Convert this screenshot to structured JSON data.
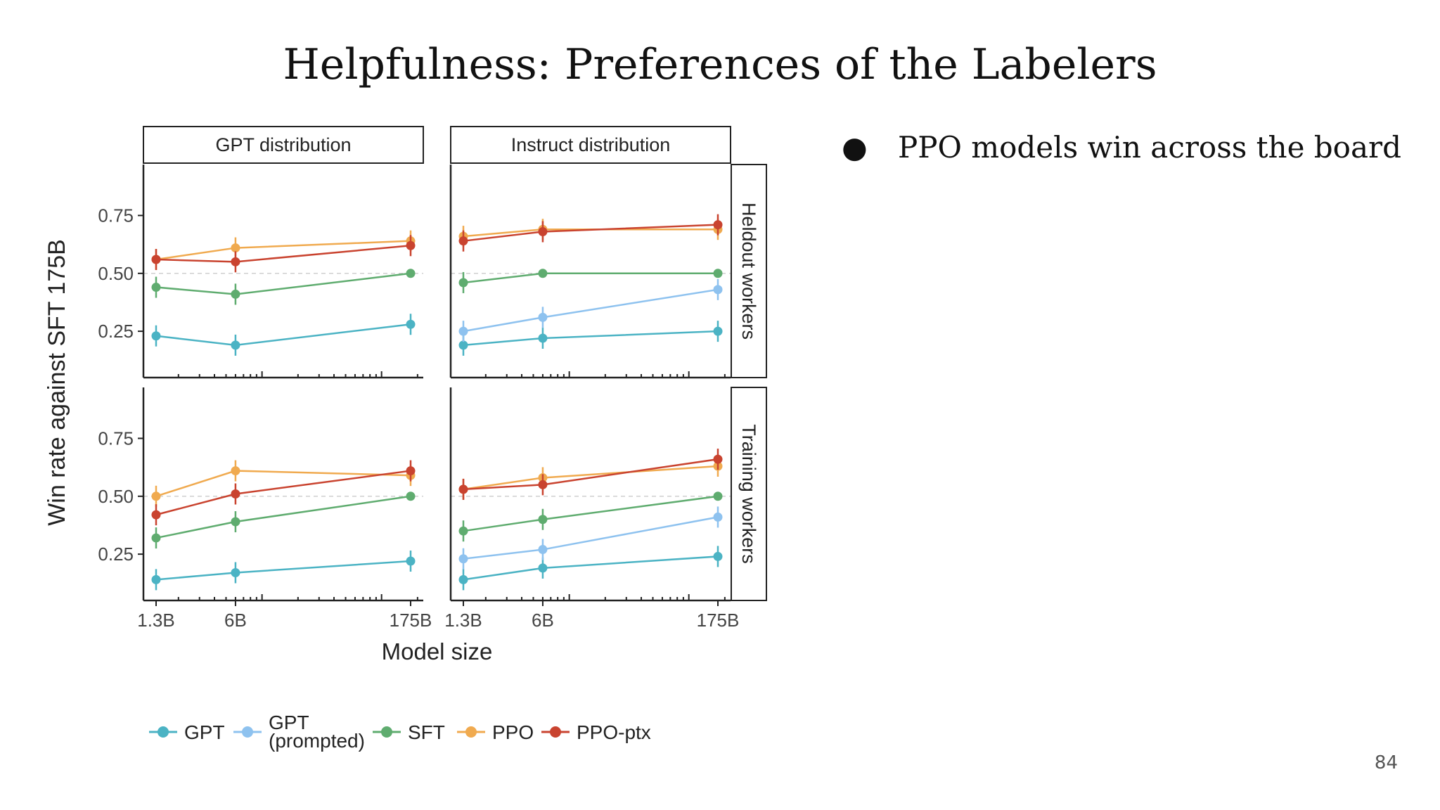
{
  "slide": {
    "title": "Helpfulness: Preferences of the Labelers",
    "bullets": [
      "PPO models win across the board"
    ],
    "page_number": "84"
  },
  "chart_data": {
    "type": "line",
    "ylabel": "Win rate against SFT 175B",
    "xlabel": "Model size",
    "x_scale": "log",
    "ylim": [
      0.05,
      0.97
    ],
    "y_ticks": [
      "0.25",
      "0.50",
      "0.75"
    ],
    "x_ticks": [
      "1.3B",
      "6B",
      "175B"
    ],
    "reference_line": 0.5,
    "column_labels": [
      "GPT distribution",
      "Instruct distribution"
    ],
    "row_labels": [
      "Heldout workers",
      "Training workers"
    ],
    "colors": {
      "GPT": "#4bb3c4",
      "GPT (prompted)": "#8ec2ef",
      "SFT": "#5fac6f",
      "PPO": "#f0aa4f",
      "PPO-ptx": "#c9432f"
    },
    "legend": [
      {
        "key": "GPT",
        "label": "GPT"
      },
      {
        "key": "GPT (prompted)",
        "label_line1": "GPT",
        "label_line2": "(prompted)"
      },
      {
        "key": "SFT",
        "label": "SFT"
      },
      {
        "key": "PPO",
        "label": "PPO"
      },
      {
        "key": "PPO-ptx",
        "label": "PPO-ptx"
      }
    ],
    "panels": [
      {
        "column": "GPT distribution",
        "row": "Heldout workers",
        "series": [
          {
            "name": "GPT",
            "values": [
              0.23,
              0.19,
              0.28
            ]
          },
          {
            "name": "SFT",
            "values": [
              0.44,
              0.41,
              0.5
            ]
          },
          {
            "name": "PPO",
            "values": [
              0.56,
              0.61,
              0.64
            ]
          },
          {
            "name": "PPO-ptx",
            "values": [
              0.56,
              0.55,
              0.62
            ]
          }
        ]
      },
      {
        "column": "Instruct distribution",
        "row": "Heldout workers",
        "series": [
          {
            "name": "GPT",
            "values": [
              0.19,
              0.22,
              0.25
            ]
          },
          {
            "name": "GPT (prompted)",
            "values": [
              0.25,
              0.31,
              0.43
            ]
          },
          {
            "name": "SFT",
            "values": [
              0.46,
              0.5,
              0.5
            ]
          },
          {
            "name": "PPO",
            "values": [
              0.66,
              0.69,
              0.69
            ]
          },
          {
            "name": "PPO-ptx",
            "values": [
              0.64,
              0.68,
              0.71
            ]
          }
        ]
      },
      {
        "column": "GPT distribution",
        "row": "Training workers",
        "series": [
          {
            "name": "GPT",
            "values": [
              0.14,
              0.17,
              0.22
            ]
          },
          {
            "name": "SFT",
            "values": [
              0.32,
              0.39,
              0.5
            ]
          },
          {
            "name": "PPO",
            "values": [
              0.5,
              0.61,
              0.59
            ]
          },
          {
            "name": "PPO-ptx",
            "values": [
              0.42,
              0.51,
              0.61
            ]
          }
        ]
      },
      {
        "column": "Instruct distribution",
        "row": "Training workers",
        "series": [
          {
            "name": "GPT",
            "values": [
              0.14,
              0.19,
              0.24
            ]
          },
          {
            "name": "GPT (prompted)",
            "values": [
              0.23,
              0.27,
              0.41
            ]
          },
          {
            "name": "SFT",
            "values": [
              0.35,
              0.4,
              0.5
            ]
          },
          {
            "name": "PPO",
            "values": [
              0.53,
              0.58,
              0.63
            ]
          },
          {
            "name": "PPO-ptx",
            "values": [
              0.53,
              0.55,
              0.66
            ]
          }
        ]
      }
    ]
  }
}
